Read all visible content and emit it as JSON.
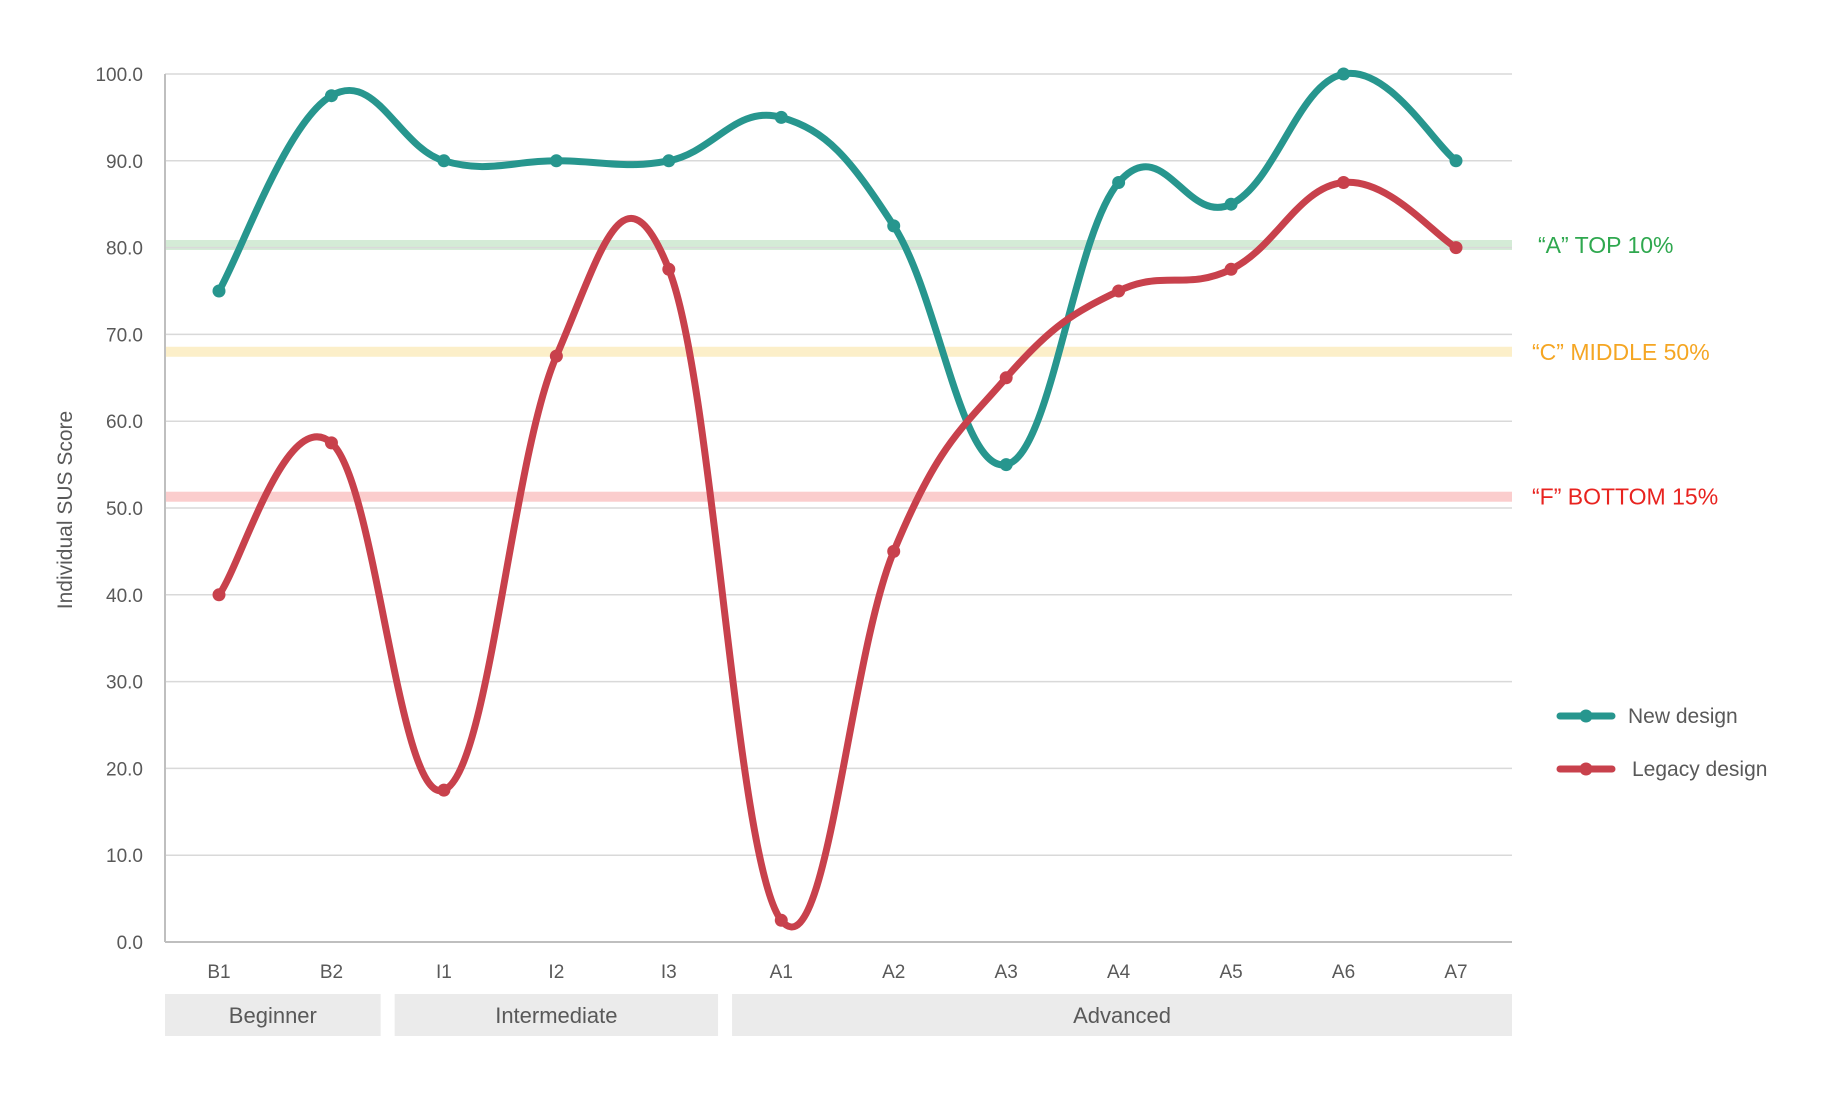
{
  "chart_data": {
    "type": "line",
    "ylabel": "Individual SUS Score",
    "ylim": [
      0,
      100
    ],
    "yticks": [
      "0.0",
      "10.0",
      "20.0",
      "30.0",
      "40.0",
      "50.0",
      "60.0",
      "70.0",
      "80.0",
      "90.0",
      "100.0"
    ],
    "grid": true,
    "categories": [
      "B1",
      "B2",
      "I1",
      "I2",
      "I3",
      "A1",
      "A2",
      "A3",
      "A4",
      "A5",
      "A6",
      "A7"
    ],
    "category_groups": [
      {
        "label": "Beginner",
        "categories": [
          "B1",
          "B2"
        ]
      },
      {
        "label": "Intermediate",
        "categories": [
          "I1",
          "I2",
          "I3"
        ]
      },
      {
        "label": "Advanced",
        "categories": [
          "A1",
          "A2",
          "A3",
          "A4",
          "A5",
          "A6",
          "A7"
        ]
      }
    ],
    "series": [
      {
        "name": "New design",
        "color": "#27968e",
        "values": [
          75,
          97.5,
          90,
          90,
          90,
          95,
          82.5,
          55,
          87.5,
          85,
          100,
          90
        ]
      },
      {
        "name": "Legacy design",
        "color": "#c8414c",
        "values": [
          40,
          57.5,
          17.5,
          67.5,
          77.5,
          2.5,
          45,
          65,
          75,
          77.5,
          87.5,
          80
        ]
      }
    ],
    "reference_bands": [
      {
        "label": "“A” TOP 10%",
        "value": 80.3,
        "color": "#d4ebd6",
        "text_color": "#2fa84f"
      },
      {
        "label": "“C” MIDDLE 50%",
        "value": 68,
        "color": "#fcefc9",
        "text_color": "#f5a623"
      },
      {
        "label": "“F” BOTTOM 15%",
        "value": 51.3,
        "color": "#fbcdcd",
        "text_color": "#e8231f"
      }
    ],
    "legend_position": "right"
  }
}
